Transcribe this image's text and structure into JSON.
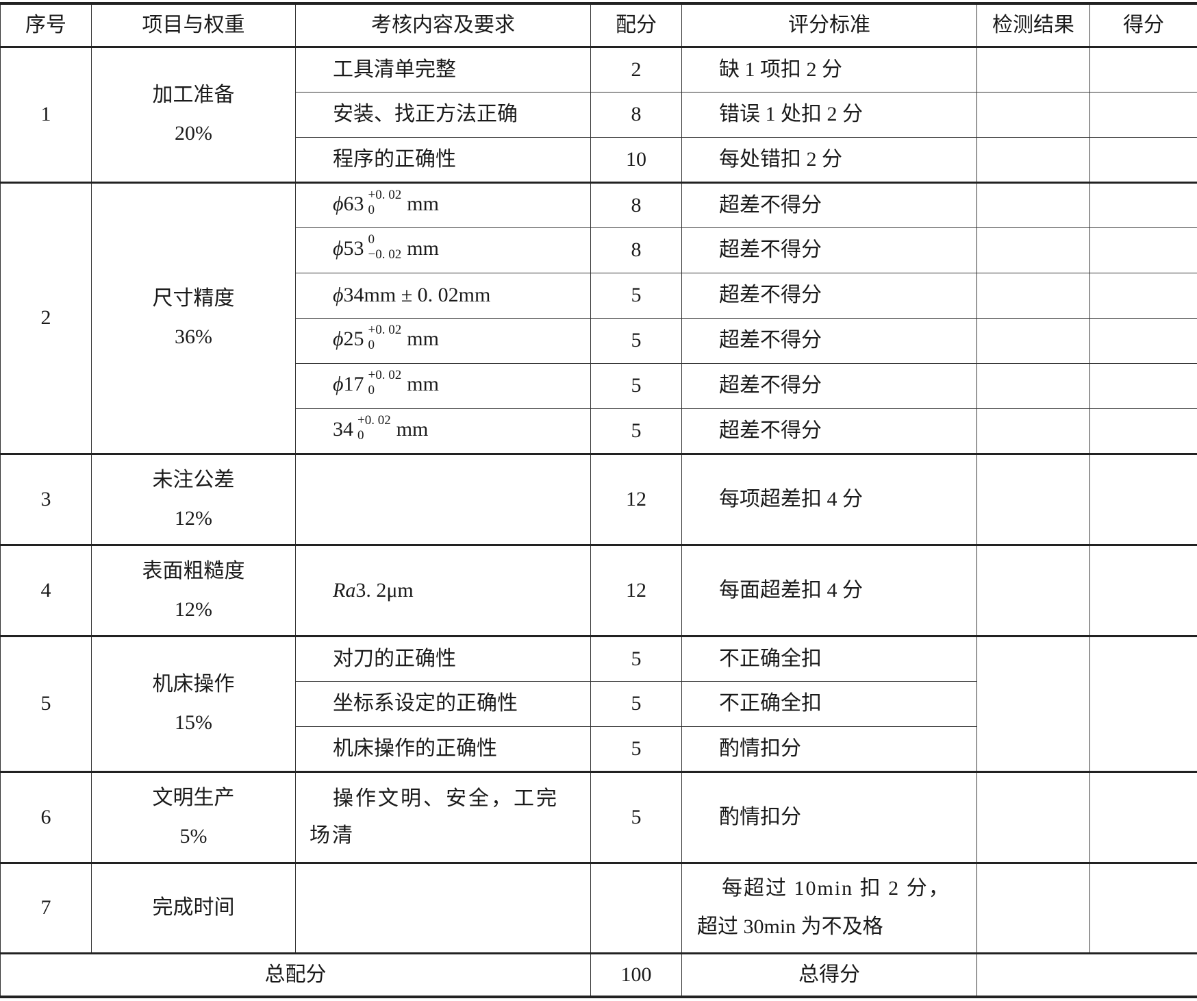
{
  "header": [
    "序号",
    "项目与权重",
    "考核内容及要求",
    "配分",
    "评分标准",
    "检测结果",
    "得分"
  ],
  "groups": [
    {
      "no": "1",
      "item": "加工准备",
      "weight": "20%",
      "rows": [
        {
          "content": "工具清单完整",
          "score": "2",
          "criteria": "缺 1 项扣 2 分"
        },
        {
          "content": "安装、找正方法正确",
          "score": "8",
          "criteria": "错误 1 处扣 2 分"
        },
        {
          "content": "程序的正确性",
          "score": "10",
          "criteria": "每处错扣 2 分"
        }
      ]
    },
    {
      "no": "2",
      "item": "尺寸精度",
      "weight": "36%",
      "rows": [
        {
          "phi": "ϕ",
          "base": "63",
          "upper": "+0. 02",
          "lower": "0",
          "unit": "mm",
          "score": "8",
          "criteria": "超差不得分"
        },
        {
          "phi": "ϕ",
          "base": "53",
          "upper": "0",
          "lower": "−0. 02",
          "unit": "mm",
          "score": "8",
          "criteria": "超差不得分"
        },
        {
          "phi": "ϕ",
          "content": "34mm ± 0. 02mm",
          "score": "5",
          "criteria": "超差不得分"
        },
        {
          "phi": "ϕ",
          "base": "25",
          "upper": "+0. 02",
          "lower": "0",
          "unit": "mm",
          "score": "5",
          "criteria": "超差不得分"
        },
        {
          "phi": "ϕ",
          "base": "17",
          "upper": "+0. 02",
          "lower": "0",
          "unit": "mm",
          "score": "5",
          "criteria": "超差不得分"
        },
        {
          "base": "34",
          "upper": "+0. 02",
          "lower": "0",
          "unit": "mm",
          "score": "5",
          "criteria": "超差不得分"
        }
      ]
    },
    {
      "no": "3",
      "item": "未注公差",
      "weight": "12%",
      "content": "",
      "score": "12",
      "criteria": "每项超差扣 4 分"
    },
    {
      "no": "4",
      "item": "表面粗糙度",
      "weight": "12%",
      "ra": "Ra",
      "content": "3. 2μm",
      "score": "12",
      "criteria": "每面超差扣 4 分"
    },
    {
      "no": "5",
      "item": "机床操作",
      "weight": "15%",
      "rows": [
        {
          "content": "对刀的正确性",
          "score": "5",
          "criteria": "不正确全扣"
        },
        {
          "content": "坐标系设定的正确性",
          "score": "5",
          "criteria": "不正确全扣"
        },
        {
          "content": "机床操作的正确性",
          "score": "5",
          "criteria": "酌情扣分"
        }
      ]
    },
    {
      "no": "6",
      "item": "文明生产",
      "weight": "5%",
      "content1": "操作文明、安全，工完",
      "content2": "场清",
      "score": "5",
      "criteria": "酌情扣分"
    },
    {
      "no": "7",
      "item": "完成时间",
      "content": "",
      "score": "",
      "criteria1": "每超过 10min 扣 2 分，",
      "criteria2": "超过 30min 为不及格"
    }
  ],
  "footer": {
    "total_label": "总配分",
    "total": "100",
    "earned_label": "总得分"
  }
}
